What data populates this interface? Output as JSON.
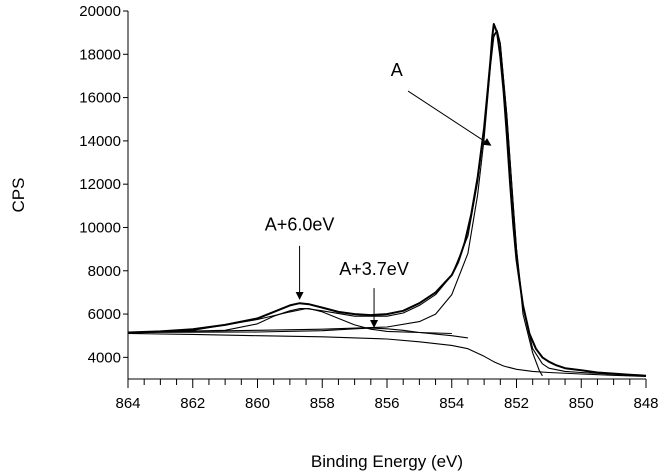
{
  "chart_data": {
    "type": "line",
    "title": "",
    "xlabel": "Binding Energy (eV)",
    "ylabel": "CPS",
    "xlim": [
      864,
      848
    ],
    "ylim": [
      3000,
      20000
    ],
    "x_reversed": true,
    "x_ticks": [
      864,
      862,
      860,
      858,
      856,
      854,
      852,
      850,
      848
    ],
    "y_ticks": [
      4000,
      6000,
      8000,
      10000,
      12000,
      14000,
      16000,
      18000,
      20000
    ],
    "grid": false,
    "legend": "none",
    "series": [
      {
        "role": "measured",
        "x": [
          864,
          863,
          862,
          861,
          860,
          859.5,
          859,
          858.7,
          858.4,
          858,
          857.5,
          857,
          856.5,
          856,
          855.5,
          855,
          854.5,
          854,
          853.8,
          853.6,
          853.4,
          853.2,
          853,
          852.9,
          852.8,
          852.75,
          852.7,
          852.6,
          852.5,
          852.4,
          852.3,
          852.2,
          852.1,
          852,
          851.8,
          851.6,
          851.4,
          851.2,
          851,
          850.8,
          850.5,
          850,
          849.5,
          849,
          848.5,
          848
        ],
        "y": [
          5150,
          5200,
          5300,
          5500,
          5800,
          6100,
          6400,
          6500,
          6450,
          6300,
          6100,
          6000,
          5950,
          6000,
          6150,
          6500,
          7000,
          7800,
          8400,
          9300,
          10600,
          12300,
          14600,
          16200,
          17800,
          18800,
          19400,
          19000,
          17900,
          16300,
          14300,
          12100,
          10100,
          8500,
          6400,
          5100,
          4400,
          4000,
          3800,
          3650,
          3500,
          3400,
          3300,
          3250,
          3200,
          3150
        ]
      },
      {
        "role": "fit-envelope",
        "x": [
          864,
          862,
          860,
          859,
          858.5,
          858,
          857,
          856,
          855.5,
          855,
          854.5,
          854,
          853.5,
          853.2,
          853,
          852.8,
          852.7,
          852.6,
          852.5,
          852.3,
          852.1,
          852,
          851.8,
          851.5,
          851.2,
          851,
          850.5,
          850,
          849,
          848
        ],
        "y": [
          5100,
          5250,
          5750,
          6100,
          6250,
          6150,
          5900,
          5900,
          6050,
          6400,
          6900,
          7800,
          9600,
          12100,
          14600,
          17700,
          18900,
          19100,
          18500,
          15200,
          11000,
          9000,
          6300,
          4400,
          3700,
          3500,
          3350,
          3300,
          3220,
          3150
        ]
      },
      {
        "role": "component-A",
        "x": [
          864,
          860,
          858,
          856,
          855,
          854.5,
          854,
          853.5,
          853.2,
          853,
          852.8,
          852.7,
          852.6,
          852.5,
          852.3,
          852.1,
          852,
          851.8,
          851.5,
          851.3,
          851.2
        ],
        "y": [
          5150,
          5250,
          5300,
          5400,
          5650,
          6000,
          6900,
          8800,
          11500,
          14100,
          17500,
          18800,
          19100,
          18500,
          15200,
          11000,
          9000,
          6000,
          4200,
          3400,
          3150
        ]
      },
      {
        "role": "component-A+6.0eV",
        "x": [
          864,
          861,
          860,
          859.5,
          859,
          858.7,
          858.4,
          858,
          857.5,
          857,
          856.5,
          856,
          855,
          854
        ],
        "y": [
          5150,
          5250,
          5550,
          5900,
          6150,
          6250,
          6250,
          6100,
          5800,
          5500,
          5300,
          5200,
          5150,
          5100
        ]
      },
      {
        "role": "component-A+3.7eV",
        "x": [
          864,
          860,
          858,
          857,
          856.5,
          856,
          855.5,
          855,
          854,
          853.5
        ],
        "y": [
          5150,
          5170,
          5230,
          5320,
          5350,
          5320,
          5250,
          5150,
          5000,
          4900
        ]
      },
      {
        "role": "background",
        "x": [
          864,
          862,
          860,
          858,
          856,
          855,
          854,
          853.5,
          853,
          852.7,
          852.4,
          852,
          851.5,
          851,
          850,
          849,
          848
        ],
        "y": [
          5100,
          5060,
          5000,
          4950,
          4850,
          4720,
          4550,
          4400,
          4050,
          3800,
          3600,
          3450,
          3350,
          3300,
          3230,
          3170,
          3120
        ]
      }
    ],
    "annotations": [
      {
        "text": "A",
        "label_x": 855.7,
        "label_y": 17000,
        "arrow_from": [
          855.35,
          16300
        ],
        "arrow_to": [
          852.8,
          13800
        ]
      },
      {
        "text": "A+6.0eV",
        "label_x": 858.7,
        "label_y": 9850,
        "arrow_from": [
          858.7,
          9150
        ],
        "arrow_to": [
          858.7,
          6700
        ]
      },
      {
        "text": "A+3.7eV",
        "label_x": 856.4,
        "label_y": 7800,
        "arrow_from": [
          856.4,
          7200
        ],
        "arrow_to": [
          856.4,
          5400
        ]
      }
    ]
  }
}
